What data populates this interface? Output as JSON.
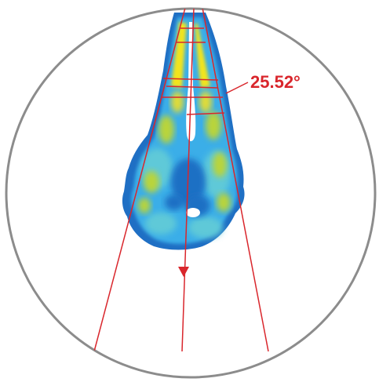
{
  "measurement": {
    "angle_label": "25.52°",
    "annotation_color": "#d9262c"
  },
  "image": {
    "frame_color": "#8c8c8c",
    "heatmap_colors": {
      "outer": "#1f6fc4",
      "mid": "#3aaee8",
      "low": "#5fc9d8",
      "warm": "#b9d43a",
      "hot": "#f2e41a",
      "void": "#ffffff"
    }
  }
}
